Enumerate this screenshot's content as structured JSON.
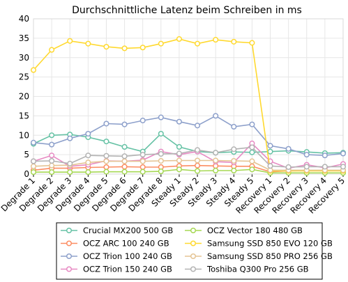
{
  "chart_data": {
    "type": "line",
    "title": "Durchschnittliche Latenz beim Schreiben in ms",
    "xlabel": "",
    "ylabel": "",
    "ylim": [
      0,
      40
    ],
    "yticks": [
      "0",
      "5",
      "10",
      "15",
      "20",
      "25",
      "30",
      "35",
      "40"
    ],
    "grid": true,
    "legend_position": "bottom",
    "categories": [
      "Degrade 1",
      "Degrade 2",
      "Degrade 3",
      "Degrade 4",
      "Degrade 5",
      "Degrade 6",
      "Degrade 7",
      "Degrade 8",
      "Steady 1",
      "Steady 2",
      "Steady 3",
      "Steady 4",
      "Steady 5",
      "Recovery 1",
      "Recovery 2",
      "Recovery 3",
      "Recovery 4",
      "Recovery 5"
    ],
    "series": [
      {
        "name": "Crucial MX200 500 GB",
        "color": "#66c2a5",
        "values": [
          7.8,
          10.0,
          10.2,
          9.5,
          8.4,
          7.0,
          5.8,
          10.4,
          7.0,
          5.8,
          5.5,
          5.7,
          5.6,
          5.8,
          6.0,
          5.7,
          5.4,
          5.5
        ]
      },
      {
        "name": "OCZ ARC 100 240 GB",
        "color": "#fc8d62",
        "values": [
          1.0,
          1.5,
          1.5,
          1.7,
          1.8,
          1.9,
          1.8,
          1.8,
          2.1,
          2.2,
          2.1,
          2.0,
          2.0,
          0.6,
          0.8,
          0.9,
          0.9,
          0.9
        ]
      },
      {
        "name": "OCZ Trion 100 240 GB",
        "color": "#8da0cb",
        "values": [
          8.1,
          7.6,
          9.2,
          10.4,
          13.0,
          12.8,
          13.8,
          14.6,
          13.5,
          12.5,
          15.0,
          12.2,
          12.8,
          7.3,
          6.5,
          5.0,
          4.8,
          5.3
        ]
      },
      {
        "name": "OCZ Trion 150 240 GB",
        "color": "#e78ac3",
        "values": [
          3.3,
          4.8,
          2.0,
          2.4,
          3.4,
          3.3,
          3.6,
          5.8,
          5.0,
          5.8,
          3.2,
          3.0,
          7.9,
          3.3,
          1.5,
          2.4,
          1.6,
          2.6
        ]
      },
      {
        "name": "OCZ Vector 180 480 GB",
        "color": "#a6d854",
        "values": [
          0.5,
          0.5,
          0.5,
          0.5,
          0.6,
          0.6,
          0.6,
          0.7,
          1.2,
          0.8,
          0.9,
          0.9,
          1.2,
          0.3,
          0.3,
          0.3,
          0.3,
          0.3
        ]
      },
      {
        "name": "Samsung SSD 850 EVO 120 GB",
        "color": "#ffd92f",
        "values": [
          26.8,
          32.0,
          34.3,
          33.6,
          32.8,
          32.4,
          32.6,
          33.6,
          34.8,
          33.6,
          34.6,
          34.1,
          33.8,
          0.8,
          0.8,
          0.8,
          0.8,
          0.8
        ]
      },
      {
        "name": "Samsung SSD 850 PRO 256 GB",
        "color": "#e5c494",
        "values": [
          2.0,
          2.2,
          2.3,
          3.0,
          3.3,
          3.3,
          3.3,
          3.4,
          3.5,
          3.5,
          3.5,
          3.4,
          3.3,
          1.0,
          1.0,
          1.0,
          1.0,
          1.0
        ]
      },
      {
        "name": "Toshiba Q300 Pro 256 GB",
        "color": "#b3b3b3",
        "values": [
          3.3,
          3.4,
          2.7,
          4.8,
          4.7,
          4.6,
          5.0,
          5.2,
          5.3,
          6.2,
          5.5,
          6.4,
          6.9,
          2.1,
          1.8,
          1.9,
          1.9,
          1.9
        ]
      }
    ]
  }
}
